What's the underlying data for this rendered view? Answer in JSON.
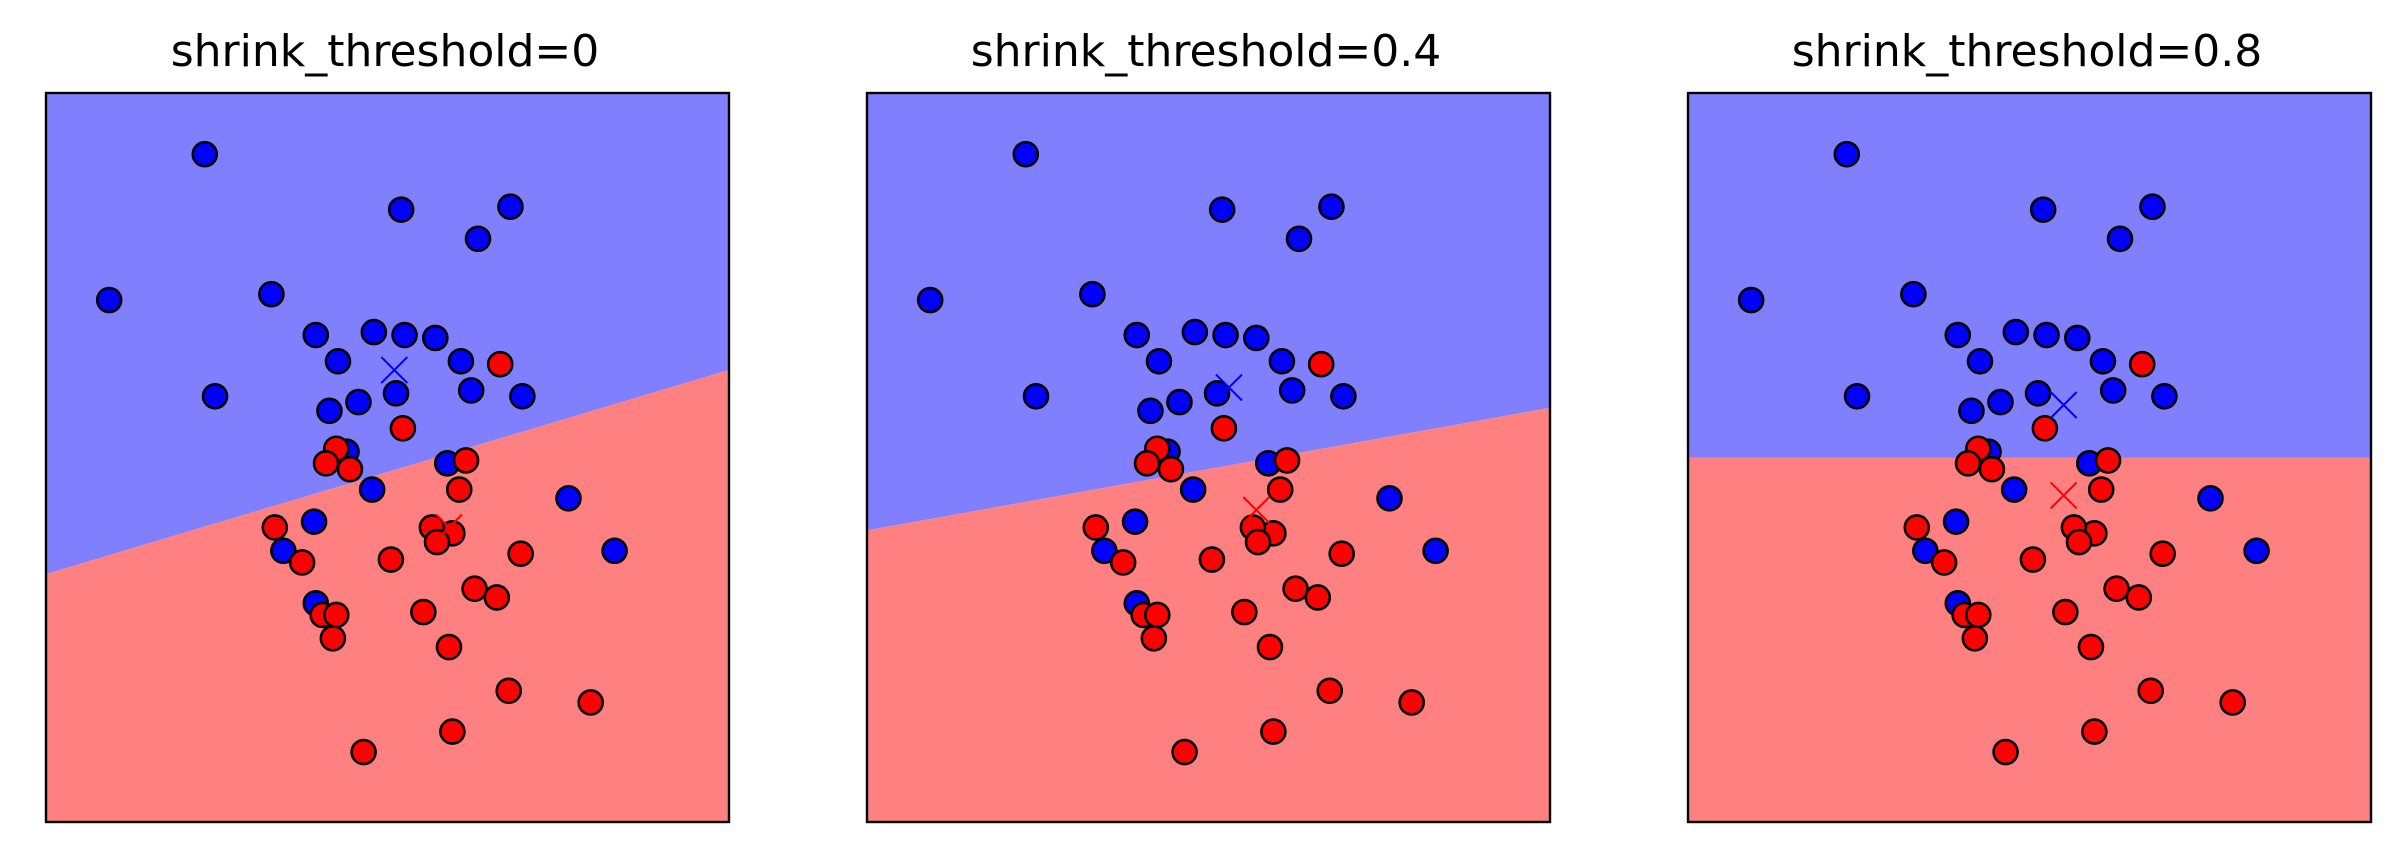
{
  "colors": {
    "class0_region": "#8080ff",
    "class1_region": "#ff8080",
    "class0_point": "#0000ff",
    "class1_point": "#ff0000",
    "edge": "#000000"
  },
  "chart_data": [
    {
      "type": "scatter",
      "title": "shrink_threshold=0",
      "xlabel": "",
      "ylabel": "",
      "xlim": [
        -1.5,
        2.5
      ],
      "ylim": [
        -1.0,
        1.5
      ],
      "axes_ticks": false,
      "grid": false,
      "legend": "none",
      "decision_boundary": {
        "x": [
          -1.5,
          2.5
        ],
        "y": [
          -0.15,
          0.55
        ],
        "upper_class": 0,
        "lower_class": 1
      },
      "centroids": [
        {
          "class": 0,
          "x": 0.54,
          "y": 0.55
        },
        {
          "class": 1,
          "x": 0.86,
          "y": 0.01
        }
      ]
    },
    {
      "type": "scatter",
      "title": "shrink_threshold=0.4",
      "xlabel": "",
      "ylabel": "",
      "xlim": [
        -1.5,
        2.5
      ],
      "ylim": [
        -1.0,
        1.5
      ],
      "axes_ticks": false,
      "grid": false,
      "legend": "none",
      "decision_boundary": {
        "x": [
          -1.5,
          2.5
        ],
        "y": [
          0.0,
          0.42
        ],
        "upper_class": 0,
        "lower_class": 1
      },
      "centroids": [
        {
          "class": 0,
          "x": 0.62,
          "y": 0.49
        },
        {
          "class": 1,
          "x": 0.78,
          "y": 0.07
        }
      ]
    },
    {
      "type": "scatter",
      "title": "shrink_threshold=0.8",
      "xlabel": "",
      "ylabel": "",
      "xlim": [
        -1.5,
        2.5
      ],
      "ylim": [
        -1.0,
        1.5
      ],
      "axes_ticks": false,
      "grid": false,
      "legend": "none",
      "decision_boundary": {
        "x": [
          -1.5,
          2.5
        ],
        "y": [
          0.25,
          0.25
        ],
        "upper_class": 0,
        "lower_class": 1
      },
      "centroids": [
        {
          "class": 0,
          "x": 0.7,
          "y": 0.43
        },
        {
          "class": 1,
          "x": 0.7,
          "y": 0.12
        }
      ]
    }
  ],
  "points": {
    "class0": [
      [
        -0.57,
        1.29
      ],
      [
        0.58,
        1.1
      ],
      [
        1.22,
        1.11
      ],
      [
        1.03,
        1.0
      ],
      [
        -1.13,
        0.79
      ],
      [
        -0.18,
        0.81
      ],
      [
        0.08,
        0.67
      ],
      [
        0.42,
        0.68
      ],
      [
        0.6,
        0.67
      ],
      [
        0.78,
        0.66
      ],
      [
        0.21,
        0.58
      ],
      [
        0.93,
        0.58
      ],
      [
        -0.51,
        0.46
      ],
      [
        0.55,
        0.47
      ],
      [
        0.99,
        0.48
      ],
      [
        1.29,
        0.46
      ],
      [
        0.33,
        0.44
      ],
      [
        0.16,
        0.41
      ],
      [
        0.26,
        0.27
      ],
      [
        0.85,
        0.23
      ],
      [
        0.41,
        0.14
      ],
      [
        1.56,
        0.11
      ],
      [
        0.07,
        0.03
      ],
      [
        -0.11,
        -0.07
      ],
      [
        1.83,
        -0.07
      ],
      [
        0.08,
        -0.25
      ]
    ],
    "class1": [
      [
        1.16,
        0.57
      ],
      [
        0.59,
        0.35
      ],
      [
        0.28,
        0.21
      ],
      [
        0.2,
        0.28
      ],
      [
        0.14,
        0.23
      ],
      [
        0.96,
        0.24
      ],
      [
        0.92,
        0.14
      ],
      [
        -0.16,
        0.01
      ],
      [
        0.88,
        -0.01
      ],
      [
        0.76,
        0.01
      ],
      [
        0.79,
        -0.04
      ],
      [
        0.52,
        -0.1
      ],
      [
        0.0,
        -0.11
      ],
      [
        1.28,
        -0.08
      ],
      [
        1.01,
        -0.2
      ],
      [
        0.12,
        -0.29
      ],
      [
        0.2,
        -0.29
      ],
      [
        1.14,
        -0.23
      ],
      [
        0.18,
        -0.37
      ],
      [
        0.71,
        -0.28
      ],
      [
        0.86,
        -0.4
      ],
      [
        1.21,
        -0.55
      ],
      [
        1.69,
        -0.59
      ],
      [
        0.88,
        -0.69
      ],
      [
        0.36,
        -0.76
      ]
    ]
  }
}
